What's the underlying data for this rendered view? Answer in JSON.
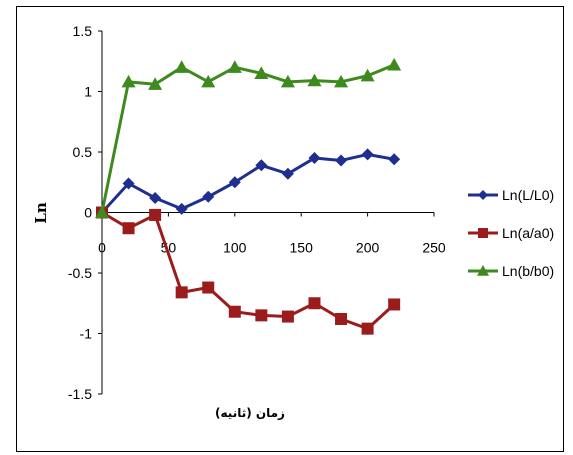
{
  "chart_data": {
    "type": "line",
    "title": "",
    "xlabel": "زمان (ثانیه)",
    "ylabel": "Ln",
    "xlim": [
      0,
      250
    ],
    "ylim": [
      -1.5,
      1.5
    ],
    "xticks": [
      0,
      50,
      100,
      150,
      200,
      250
    ],
    "yticks": [
      1.5,
      1,
      0.5,
      0,
      -0.5,
      -1,
      -1.5
    ],
    "grid": false,
    "legend_position": "right",
    "x": [
      0,
      20,
      40,
      60,
      80,
      100,
      120,
      140,
      160,
      180,
      200,
      220
    ],
    "series": [
      {
        "name": "Ln(L/L0)",
        "marker": "diamond",
        "color": "#1f2f8f",
        "values": [
          0,
          0.24,
          0.12,
          0.03,
          0.13,
          0.25,
          0.39,
          0.32,
          0.45,
          0.43,
          0.48,
          0.44
        ]
      },
      {
        "name": "Ln(a/a0)",
        "marker": "square",
        "color": "#9b1c1c",
        "values": [
          0,
          -0.13,
          -0.02,
          -0.66,
          -0.62,
          -0.82,
          -0.85,
          -0.86,
          -0.75,
          -0.88,
          -0.96,
          -0.76
        ]
      },
      {
        "name": "Ln(b/b0)",
        "marker": "triangle",
        "color": "#3e8a1e",
        "values": [
          0,
          1.08,
          1.06,
          1.2,
          1.08,
          1.2,
          1.15,
          1.08,
          1.09,
          1.08,
          1.13,
          1.22
        ]
      }
    ]
  }
}
